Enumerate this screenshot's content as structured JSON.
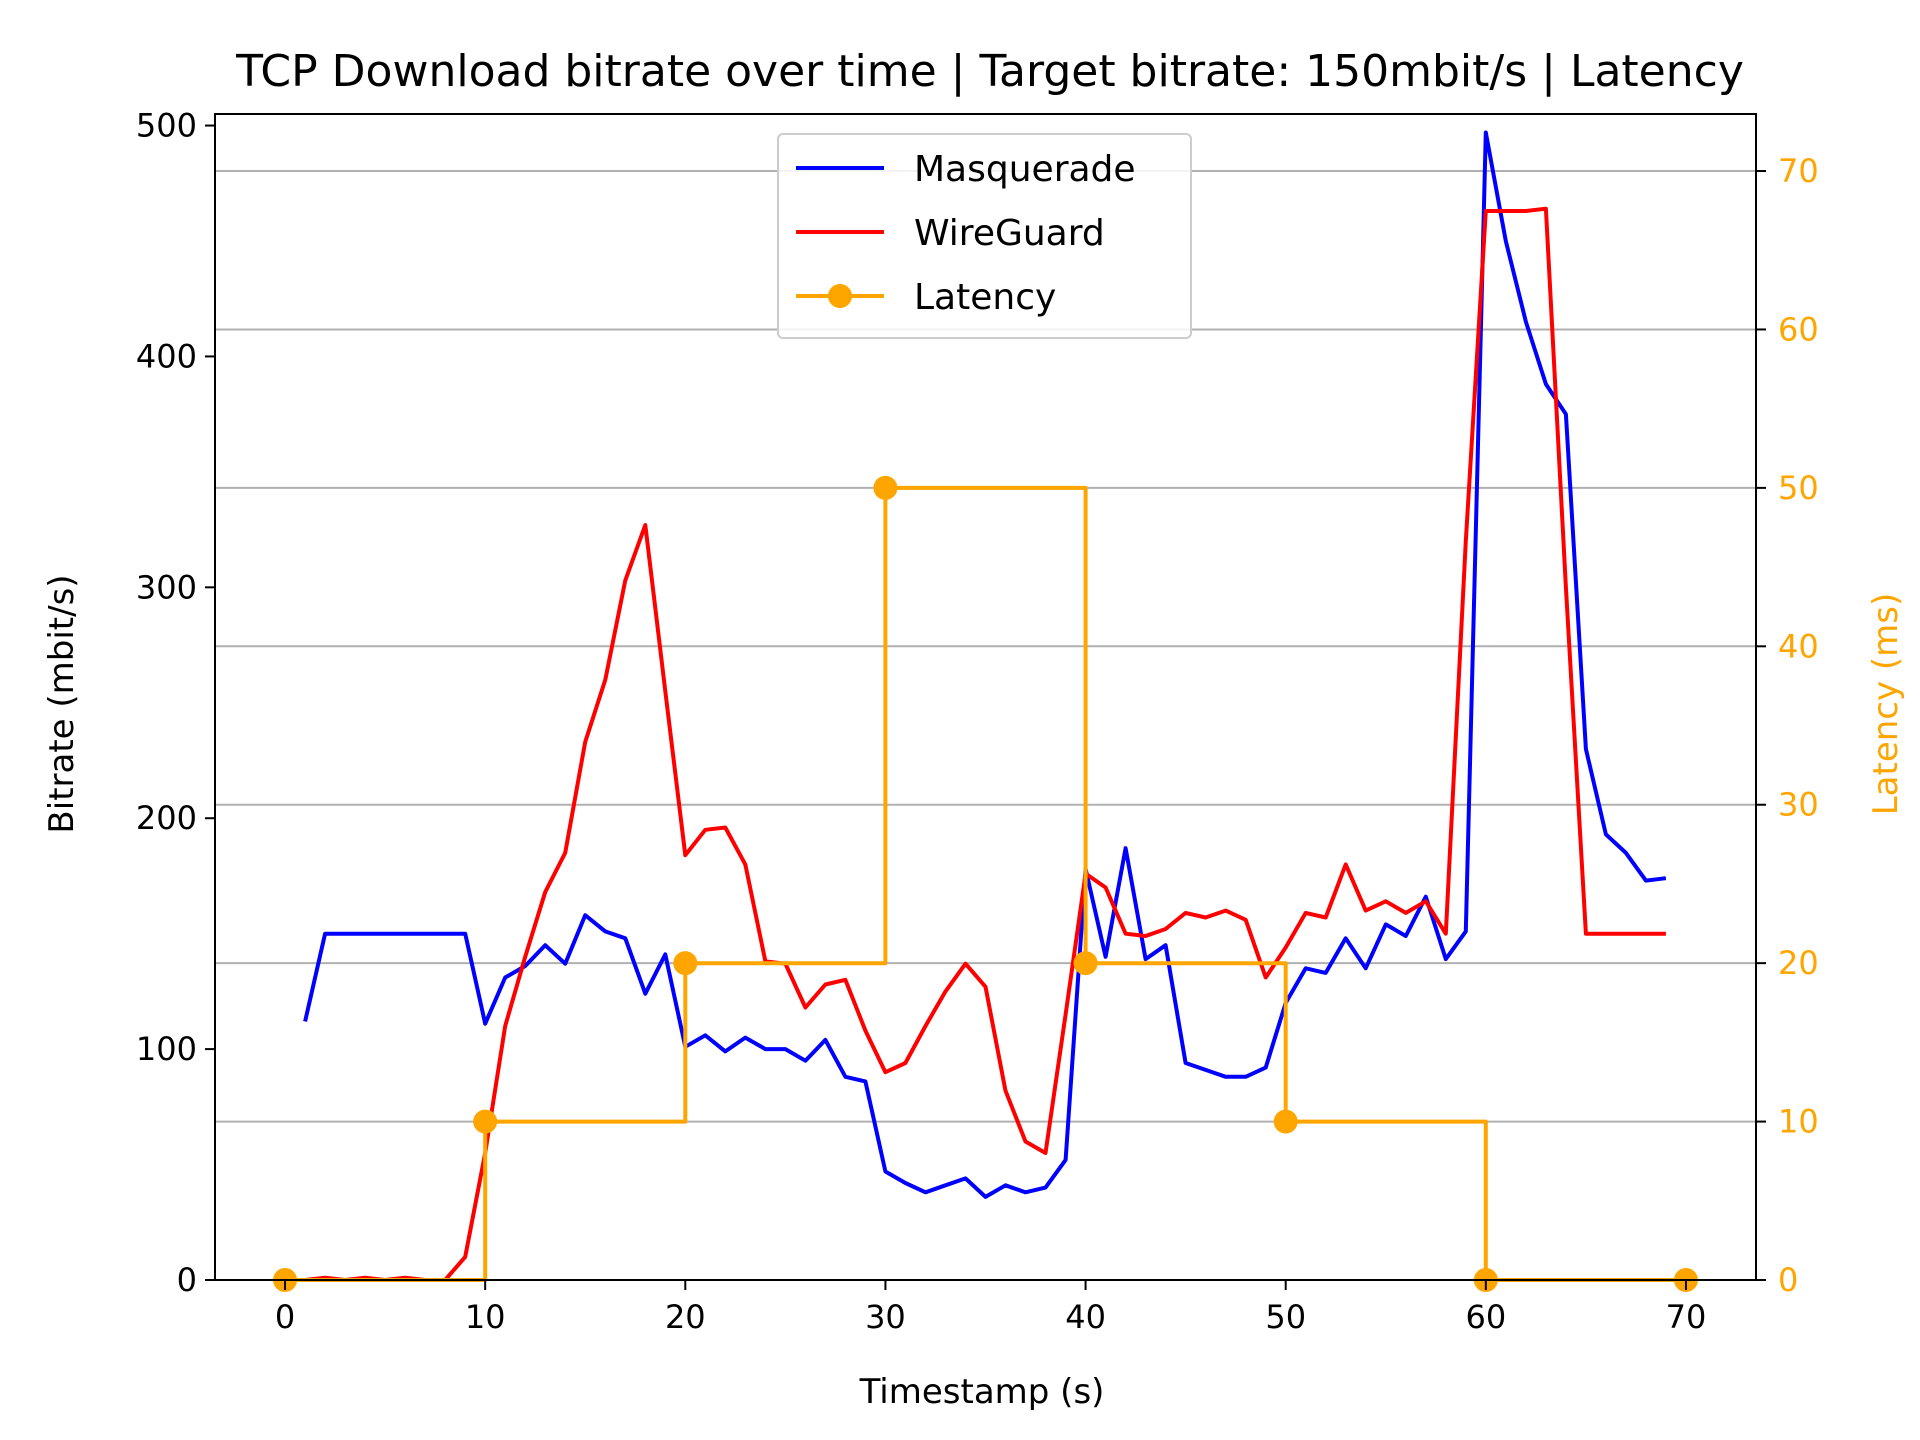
{
  "chart_data": {
    "type": "line",
    "title": "TCP Download bitrate over time | Target bitrate: 150mbit/s | Latency",
    "xlabel": "Timestamp (s)",
    "ylabel": "Bitrate (mbit/s)",
    "y2label": "Latency (ms)",
    "xlim": [
      -3.5,
      73.5
    ],
    "ylim": [
      0,
      505
    ],
    "y2lim": [
      0,
      73.6
    ],
    "xticks": [
      "0",
      "10",
      "20",
      "30",
      "40",
      "50",
      "60",
      "70"
    ],
    "yticks": [
      "0",
      "100",
      "200",
      "300",
      "400",
      "500"
    ],
    "y2ticks": [
      "0",
      "10",
      "20",
      "30",
      "40",
      "50",
      "60",
      "70"
    ],
    "grid": "horizontal, at right-axis ticks",
    "legend_position": "top-center",
    "colors": {
      "masquerade": "#0000ff",
      "wireguard": "#ff0000",
      "latency": "#ffa500",
      "grid": "#b0b0b0"
    },
    "series": [
      {
        "name": "Masquerade",
        "axis": "left",
        "x": [
          1,
          2,
          3,
          4,
          5,
          6,
          7,
          8,
          9,
          10,
          11,
          12,
          13,
          14,
          15,
          16,
          17,
          18,
          19,
          20,
          21,
          22,
          23,
          24,
          25,
          26,
          27,
          28,
          29,
          30,
          31,
          32,
          33,
          34,
          35,
          36,
          37,
          38,
          39,
          40,
          41,
          42,
          43,
          44,
          45,
          46,
          47,
          48,
          49,
          50,
          51,
          52,
          53,
          54,
          55,
          56,
          57,
          58,
          59,
          60,
          61,
          62,
          63,
          64,
          65,
          66,
          67,
          68,
          69
        ],
        "y": [
          112,
          150,
          150,
          150,
          150,
          150,
          150,
          150,
          150,
          111,
          131,
          136,
          145,
          137,
          158,
          151,
          148,
          124,
          141,
          101,
          106,
          99,
          105,
          100,
          100,
          95,
          104,
          88,
          86,
          47,
          42,
          38,
          41,
          44,
          36,
          41,
          38,
          40,
          52,
          178,
          140,
          187,
          139,
          145,
          94,
          91,
          88,
          88,
          92,
          120,
          135,
          133,
          148,
          135,
          154,
          149,
          166,
          139,
          151,
          497,
          450,
          415,
          388,
          375,
          230,
          193,
          185,
          173,
          174
        ]
      },
      {
        "name": "WireGuard",
        "axis": "left",
        "x": [
          0,
          1,
          2,
          3,
          4,
          5,
          6,
          7,
          8,
          9,
          10,
          11,
          12,
          13,
          14,
          15,
          16,
          17,
          18,
          19,
          20,
          21,
          22,
          23,
          24,
          25,
          26,
          27,
          28,
          29,
          30,
          31,
          32,
          33,
          34,
          35,
          36,
          37,
          38,
          39,
          40,
          41,
          42,
          43,
          44,
          45,
          46,
          47,
          48,
          49,
          50,
          51,
          52,
          53,
          54,
          55,
          56,
          57,
          58,
          59,
          60,
          61,
          62,
          63,
          64,
          65,
          66,
          67,
          68,
          69
        ],
        "y": [
          0,
          0,
          1,
          0,
          1,
          0,
          1,
          0,
          0,
          10,
          55,
          110,
          140,
          168,
          185,
          233,
          260,
          303,
          327,
          255,
          184,
          195,
          196,
          180,
          138,
          137,
          118,
          128,
          130,
          108,
          90,
          94,
          110,
          125,
          137,
          127,
          82,
          60,
          55,
          115,
          176,
          170,
          150,
          149,
          152,
          159,
          157,
          160,
          156,
          131,
          144,
          159,
          157,
          180,
          160,
          164,
          159,
          164,
          150,
          320,
          463,
          463,
          463,
          464,
          300,
          150,
          150,
          150,
          150,
          150
        ],
        "min_shown": 0
      },
      {
        "name": "Latency",
        "axis": "right",
        "drawstyle": "steps-post",
        "marker": "o",
        "x": [
          0,
          10,
          20,
          30,
          40,
          50,
          60,
          70
        ],
        "y": [
          0,
          10,
          20,
          50,
          20,
          10,
          0,
          0
        ]
      }
    ]
  }
}
